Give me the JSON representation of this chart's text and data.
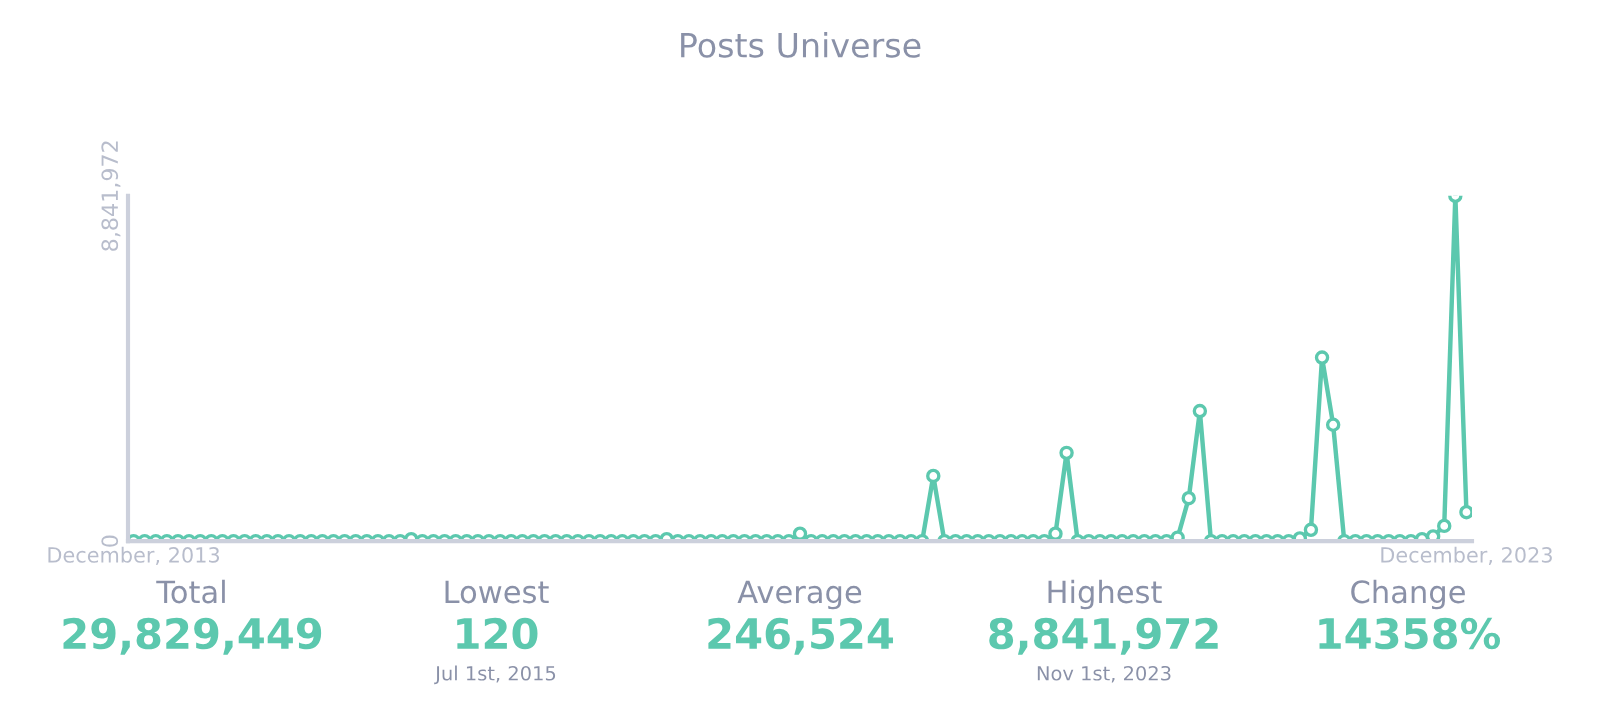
{
  "chart_data": {
    "type": "line",
    "title": "Posts Universe",
    "categories": [
      "December, 2013",
      null,
      null,
      null,
      null,
      null,
      null,
      null,
      null,
      null,
      null,
      null,
      null,
      null,
      null,
      null,
      null,
      null,
      null,
      null,
      null,
      null,
      null,
      null,
      null,
      null,
      null,
      null,
      null,
      null,
      null,
      null,
      null,
      null,
      null,
      null,
      null,
      null,
      null,
      null,
      null,
      null,
      null,
      null,
      null,
      null,
      null,
      null,
      null,
      null,
      null,
      null,
      null,
      null,
      null,
      null,
      null,
      null,
      null,
      null,
      null,
      null,
      null,
      null,
      null,
      null,
      null,
      null,
      null,
      null,
      null,
      null,
      null,
      null,
      null,
      null,
      null,
      null,
      null,
      null,
      null,
      null,
      null,
      null,
      null,
      null,
      null,
      null,
      null,
      null,
      null,
      null,
      null,
      null,
      null,
      null,
      null,
      null,
      null,
      null,
      null,
      null,
      null,
      null,
      null,
      null,
      null,
      null,
      null,
      null,
      null,
      null,
      null,
      null,
      null,
      null,
      null,
      null,
      null,
      null,
      "December, 2023"
    ],
    "series": [
      {
        "color": "#5cc8ae",
        "values": [
          0,
          0,
          0,
          0,
          0,
          0,
          0,
          0,
          0,
          0,
          0,
          0,
          0,
          0,
          0,
          0,
          0,
          0,
          0,
          0,
          0,
          0,
          0,
          0,
          0,
          50000,
          0,
          0,
          0,
          0,
          0,
          0,
          0,
          0,
          0,
          0,
          0,
          0,
          0,
          0,
          0,
          0,
          0,
          0,
          0,
          0,
          0,
          0,
          50000,
          0,
          0,
          0,
          0,
          0,
          0,
          0,
          0,
          0,
          0,
          0,
          190000,
          0,
          0,
          0,
          0,
          0,
          0,
          0,
          0,
          0,
          0,
          0,
          1670000,
          0,
          0,
          0,
          0,
          0,
          0,
          0,
          0,
          0,
          0,
          190000,
          2260000,
          0,
          0,
          0,
          0,
          0,
          0,
          0,
          0,
          0,
          90000,
          1100000,
          3330000,
          0,
          0,
          0,
          0,
          0,
          0,
          0,
          0,
          70000,
          290000,
          4700000,
          2980000,
          0,
          0,
          0,
          0,
          0,
          0,
          0,
          50000,
          120000,
          390000,
          8841972,
          740000
        ]
      }
    ],
    "ylim": [
      0,
      8841972
    ],
    "yticks": [
      0,
      {
        "value": 8841972,
        "label": "8,841,972"
      }
    ],
    "marker": "circle",
    "line_style": "solid",
    "grid": false,
    "legend": false,
    "annotations": [
      "Total\n29,829,449",
      "Lowest\n120\nJul 1st, 2015",
      "Average\n246,524",
      "Highest\n8,841,972\nNov 1st, 2023",
      "Change\n14358%"
    ]
  }
}
